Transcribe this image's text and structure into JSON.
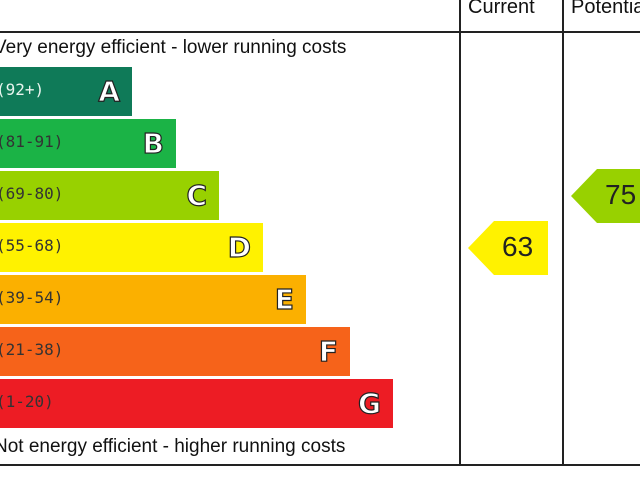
{
  "header": {
    "current_label": "Current",
    "potential_label": "Potential"
  },
  "captions": {
    "top": "Very energy efficient - lower running costs",
    "bottom": "Not energy efficient - higher running costs"
  },
  "chart_data": {
    "type": "bar",
    "title": "",
    "categories": [
      "A",
      "B",
      "C",
      "D",
      "E",
      "F",
      "G"
    ],
    "ranges": [
      "(92+)",
      "(81-91)",
      "(69-80)",
      "(55-68)",
      "(39-54)",
      "(21-38)",
      "(1-20)"
    ],
    "colors": [
      "#0f7a58",
      "#1bb346",
      "#98d100",
      "#fff200",
      "#fbb000",
      "#f6631a",
      "#ed1c24"
    ],
    "current": {
      "value": 63,
      "band": "D",
      "color": "#fff200"
    },
    "potential": {
      "value": 75,
      "band": "C",
      "color": "#98d100"
    }
  }
}
